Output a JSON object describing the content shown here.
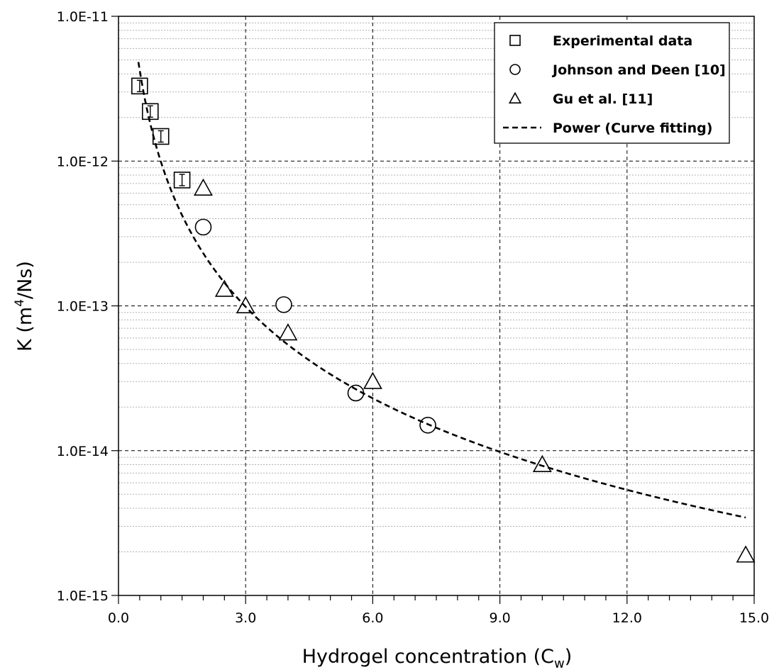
{
  "chart_data": {
    "type": "scatter",
    "xlabel": {
      "main": "Hydrogel concentration (C",
      "sub": "w",
      "end": ")"
    },
    "ylabel": {
      "main": "K (m",
      "sup": "4",
      "end": "/Ns)"
    },
    "xlim": [
      0,
      15
    ],
    "ylim": [
      1e-15,
      1e-11
    ],
    "yscale": "log",
    "x_ticks": [
      0,
      3,
      6,
      9,
      12,
      15
    ],
    "x_tick_labels": [
      "0.0",
      "3.0",
      "6.0",
      "9.0",
      "12.0",
      "15.0"
    ],
    "x_minor_step": 0.5,
    "y_ticks": [
      1e-15,
      1e-14,
      1e-13,
      1e-12,
      1e-11
    ],
    "y_tick_labels": [
      "1.0E-15",
      "1.0E-14",
      "1.0E-13",
      "1.0E-12",
      "1.0E-11"
    ],
    "grid": true,
    "legend_position": "top-right",
    "series": [
      {
        "name": "Experimental data",
        "marker": "square",
        "error_bars": true,
        "points": [
          {
            "x": 0.5,
            "y": 3.3e-12
          },
          {
            "x": 0.75,
            "y": 2.2e-12
          },
          {
            "x": 1.0,
            "y": 1.48e-12
          },
          {
            "x": 1.5,
            "y": 7.4e-13
          }
        ]
      },
      {
        "name": "Johnson and Deen [10]",
        "marker": "circle",
        "points": [
          {
            "x": 2.0,
            "y": 3.5e-13
          },
          {
            "x": 3.9,
            "y": 1.02e-13
          },
          {
            "x": 5.6,
            "y": 2.5e-14
          },
          {
            "x": 7.3,
            "y": 1.5e-14
          }
        ]
      },
      {
        "name": "Gu et al. [11]",
        "marker": "triangle",
        "points": [
          {
            "x": 2.0,
            "y": 6.5e-13
          },
          {
            "x": 2.5,
            "y": 1.3e-13
          },
          {
            "x": 3.0,
            "y": 1e-13
          },
          {
            "x": 4.0,
            "y": 6.5e-14
          },
          {
            "x": 6.0,
            "y": 3e-14
          },
          {
            "x": 10.0,
            "y": 8e-15
          },
          {
            "x": 14.8,
            "y": 1.9e-15
          }
        ]
      },
      {
        "name": "Power (Curve fitting)",
        "marker": "dashed-line",
        "fit": {
          "form": "power",
          "coefficient": 9.9e-13,
          "exponent": -2.1,
          "x_range": [
            0.47,
            14.8
          ]
        }
      }
    ]
  }
}
